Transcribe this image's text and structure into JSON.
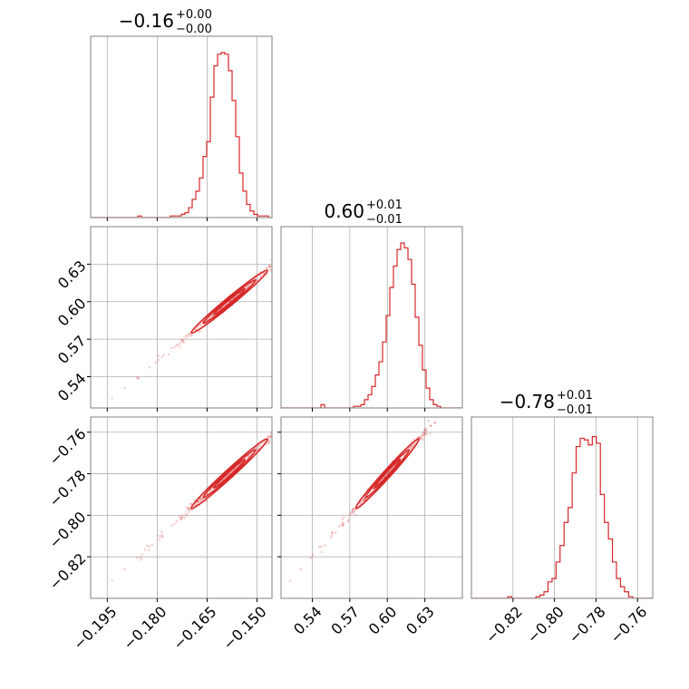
{
  "chart_data": {
    "type": "corner",
    "color": "#d62728",
    "grid": true,
    "parameters": [
      {
        "title": {
          "value": "−0.16",
          "upper": "+0.00",
          "lower": "−0.00"
        },
        "range": [
          -0.2,
          -0.1455
        ],
        "ticks": [
          -0.195,
          -0.18,
          -0.165,
          -0.15
        ],
        "tick_labels": [
          "−0.195",
          "−0.180",
          "−0.165",
          "−0.150"
        ],
        "hist": {
          "x0": -0.2,
          "x1": -0.1455,
          "values": [
            0,
            0,
            0,
            0,
            0,
            0,
            0,
            0,
            0,
            0,
            0,
            0,
            0,
            0.01,
            0,
            0,
            0,
            0,
            0,
            0,
            0,
            0,
            0.01,
            0.01,
            0.01,
            0.02,
            0.03,
            0.06,
            0.11,
            0.16,
            0.24,
            0.37,
            0.46,
            0.73,
            0.92,
            0.99,
            1.0,
            0.99,
            0.89,
            0.71,
            0.49,
            0.27,
            0.16,
            0.08,
            0.04,
            0.02,
            0.01,
            0.01,
            0.01,
            0
          ]
        }
      },
      {
        "title": {
          "value": "0.60",
          "upper": "+0.01",
          "lower": "−0.01"
        },
        "range": [
          0.515,
          0.66
        ],
        "ticks": [
          0.54,
          0.57,
          0.6,
          0.63
        ],
        "tick_labels": [
          "0.54",
          "0.57",
          "0.60",
          "0.63"
        ],
        "hist": {
          "x0": 0.515,
          "x1": 0.66,
          "values": [
            0,
            0,
            0,
            0,
            0,
            0,
            0,
            0,
            0,
            0,
            0,
            0.02,
            0,
            0,
            0,
            0,
            0,
            0,
            0,
            0,
            0.01,
            0.01,
            0.02,
            0.05,
            0.08,
            0.13,
            0.2,
            0.28,
            0.4,
            0.56,
            0.73,
            0.86,
            0.96,
            1.0,
            0.97,
            0.9,
            0.75,
            0.55,
            0.38,
            0.23,
            0.12,
            0.05,
            0.02,
            0.01,
            0,
            0,
            0,
            0,
            0,
            0
          ]
        }
      },
      {
        "title": {
          "value": "−0.78",
          "upper": "+0.01",
          "lower": "−0.01"
        },
        "range": [
          -0.84,
          -0.7527
        ],
        "ticks": [
          -0.82,
          -0.8,
          -0.78,
          -0.76
        ],
        "tick_labels": [
          "−0.82",
          "−0.80",
          "−0.78",
          "−0.76"
        ],
        "hist": {
          "x0": -0.84,
          "x1": -0.7527,
          "values": [
            0,
            0,
            0,
            0,
            0,
            0,
            0,
            0,
            0,
            0.01,
            0,
            0,
            0,
            0,
            0,
            0,
            0.01,
            0.02,
            0.04,
            0.1,
            0.12,
            0.22,
            0.32,
            0.46,
            0.55,
            0.76,
            0.92,
            0.97,
            0.96,
            0.93,
            0.98,
            0.94,
            0.63,
            0.46,
            0.36,
            0.22,
            0.12,
            0.07,
            0.04,
            0.01,
            0,
            0,
            0,
            0,
            0
          ]
        }
      }
    ],
    "pairs": [
      {
        "row": 1,
        "col": 0,
        "mean": [
          -0.1583,
          0.6
        ],
        "sd": [
          0.0075,
          0.0165
        ],
        "corr": 0.996,
        "slope": 2.2
      },
      {
        "row": 2,
        "col": 0,
        "mean": [
          -0.1583,
          -0.78
        ],
        "sd": [
          0.0075,
          0.011
        ],
        "corr": 0.996,
        "slope": 1.467
      },
      {
        "row": 2,
        "col": 1,
        "mean": [
          0.6,
          -0.78
        ],
        "sd": [
          0.0165,
          0.011
        ],
        "corr": 0.997,
        "slope": 0.667
      }
    ]
  }
}
